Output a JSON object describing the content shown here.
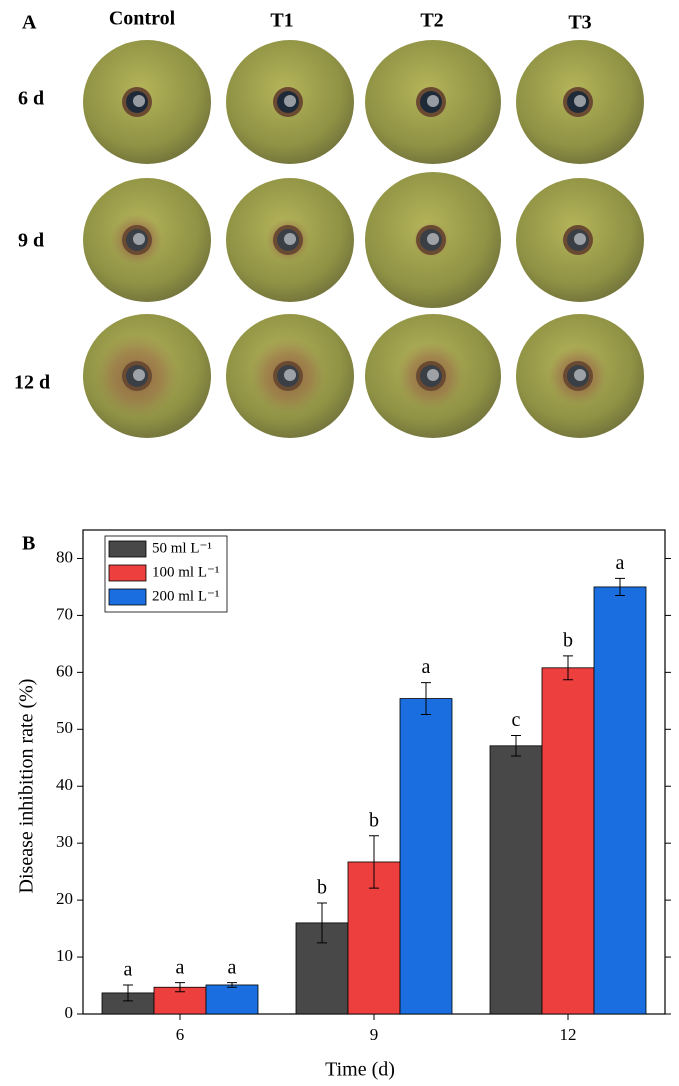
{
  "panel_a": {
    "label": "A",
    "columns": [
      "Control",
      "T1",
      "T2",
      "T3"
    ],
    "rows": [
      "6 d",
      "9 d",
      "12 d"
    ]
  },
  "chart_data": {
    "type": "bar",
    "panel_label": "B",
    "x_label": "Time (d)",
    "y_label": "Disease inhibition rate (%)",
    "categories": [
      "6",
      "9",
      "12"
    ],
    "ylim": [
      0,
      85
    ],
    "yticks": [
      0,
      10,
      20,
      30,
      40,
      50,
      60,
      70,
      80
    ],
    "legend": "top-left",
    "series": [
      {
        "name": "50 ml L⁻¹",
        "color": "#484848",
        "values": [
          3.7,
          16.0,
          47.1
        ],
        "errors": [
          1.4,
          3.5,
          1.8
        ],
        "letters": [
          "a",
          "b",
          "c"
        ]
      },
      {
        "name": "100 ml L⁻¹",
        "color": "#ee3f3f",
        "values": [
          4.7,
          26.7,
          60.8
        ],
        "errors": [
          0.8,
          4.6,
          2.1
        ],
        "letters": [
          "a",
          "b",
          "b"
        ]
      },
      {
        "name": "200 ml L⁻¹",
        "color": "#1b6ee0",
        "values": [
          5.1,
          55.4,
          75.0
        ],
        "errors": [
          0.4,
          2.8,
          1.5
        ],
        "letters": [
          "a",
          "a",
          "a"
        ]
      }
    ]
  }
}
